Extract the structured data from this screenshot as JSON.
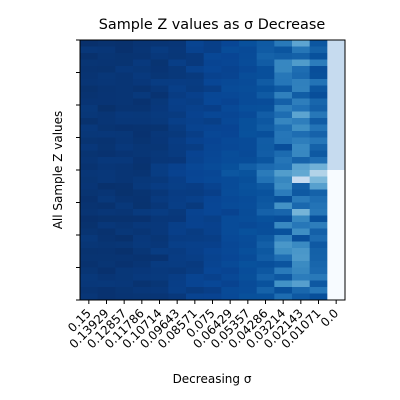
{
  "chart_data": {
    "type": "heatmap",
    "title": "Sample Z values as σ Decrease",
    "xlabel": "Decreasing σ",
    "ylabel": "All Sample Z values",
    "x_ticks": [
      "0.15",
      "0.13929",
      "0.12857",
      "0.11786",
      "0.10714",
      "0.09643",
      "0.08571",
      "0.075",
      "0.06429",
      "0.05357",
      "0.04286",
      "0.03214",
      "0.02143",
      "0.01071",
      "0.0"
    ],
    "y_ticks": [
      "",
      "",
      "",
      "",
      "",
      "",
      "",
      ""
    ],
    "colormap": "Blues",
    "rows": 40,
    "color_low": "#08306b",
    "color_high": "#f7fbff",
    "grid": false,
    "legend": "none"
  }
}
